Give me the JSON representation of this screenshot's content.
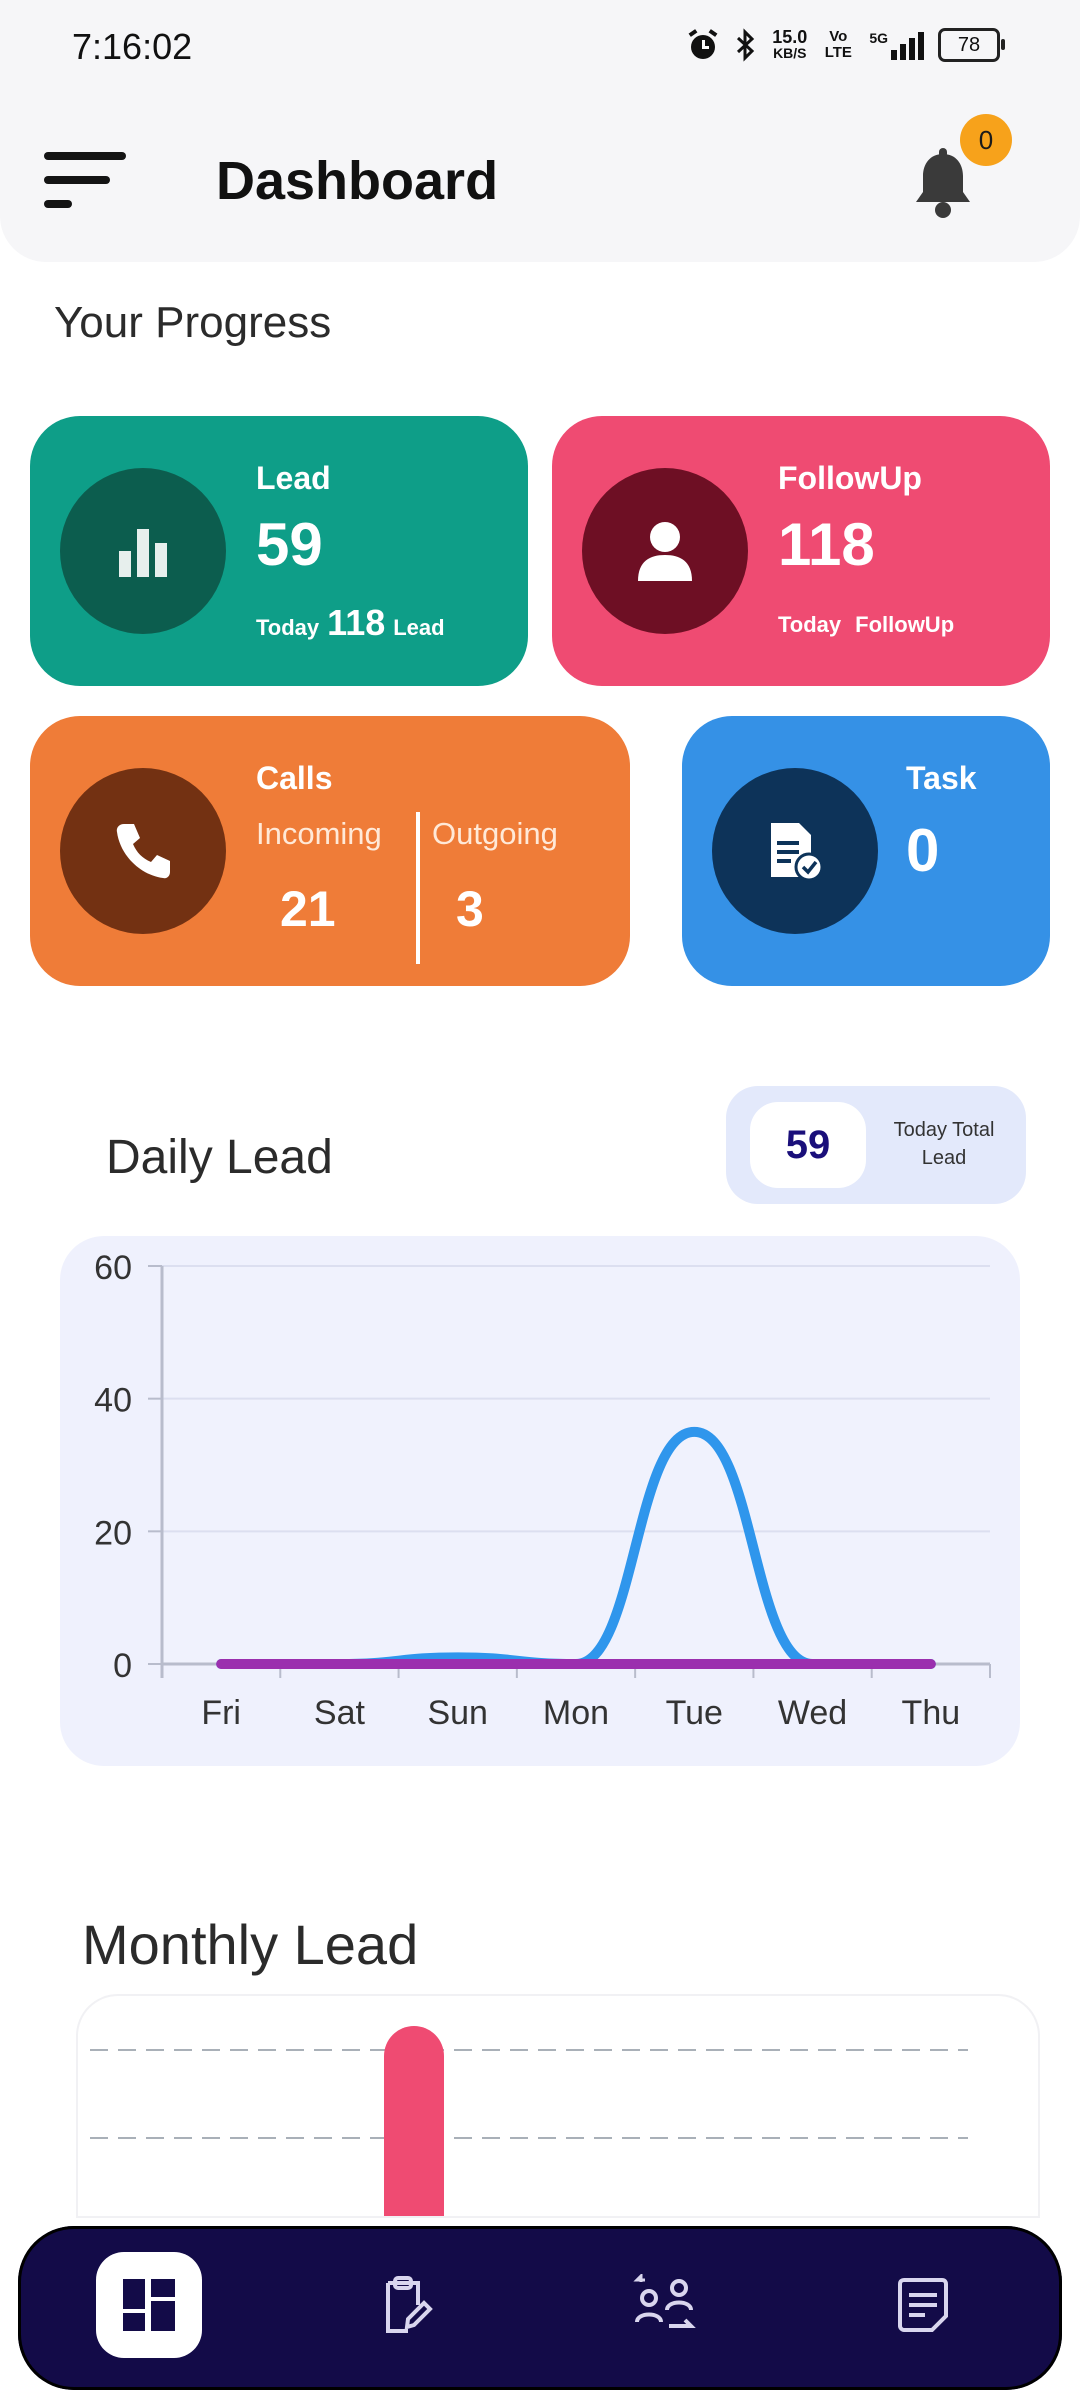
{
  "status_bar": {
    "time": "7:16:02",
    "net_speed_value": "15.0",
    "net_speed_unit": "KB/S",
    "volte": "Vo LTE",
    "network": "5G",
    "battery": "78"
  },
  "header": {
    "title": "Dashboard",
    "notification_count": "0"
  },
  "progress": {
    "section_title": "Your Progress",
    "lead": {
      "label": "Lead",
      "value": "59",
      "today_prefix": "Today",
      "today_value": "118",
      "today_suffix": "Lead"
    },
    "followup": {
      "label": "FollowUp",
      "value": "118",
      "today_prefix": "Today",
      "today_suffix": "FollowUp"
    },
    "calls": {
      "label": "Calls",
      "incoming_label": "Incoming",
      "incoming_value": "21",
      "outgoing_label": "Outgoing",
      "outgoing_value": "3"
    },
    "task": {
      "label": "Task",
      "value": "0"
    }
  },
  "daily_lead": {
    "title": "Daily Lead",
    "today_total_value": "59",
    "today_total_label": "Today Total Lead"
  },
  "chart_data": {
    "type": "line",
    "categories": [
      "Fri",
      "Sat",
      "Sun",
      "Mon",
      "Tue",
      "Wed",
      "Thu"
    ],
    "y_ticks": [
      "0",
      "20",
      "40",
      "60"
    ],
    "ylim": [
      0,
      60
    ],
    "grid": true,
    "series": [
      {
        "color": "#2f96ec",
        "values": [
          0,
          0,
          1,
          0,
          35,
          0,
          0
        ]
      },
      {
        "color": "#9b2fae",
        "values": [
          0,
          0,
          0,
          0,
          0,
          0,
          0
        ]
      }
    ]
  },
  "monthly_lead": {
    "title": "Monthly Lead",
    "bar_color": "#ef4b72"
  },
  "bottom_nav": {
    "items": [
      {
        "icon": "dashboard-icon",
        "active": true
      },
      {
        "icon": "clipboard-edit-icon",
        "active": false
      },
      {
        "icon": "users-transfer-icon",
        "active": false
      },
      {
        "icon": "notes-icon",
        "active": false
      }
    ]
  },
  "colors": {
    "lead_card": "#0e9e88",
    "followup_card": "#ef4b72",
    "calls_card": "#ef7c38",
    "task_card": "#3591e6",
    "nav_bg": "#130b48",
    "badge": "#f7a21b"
  }
}
